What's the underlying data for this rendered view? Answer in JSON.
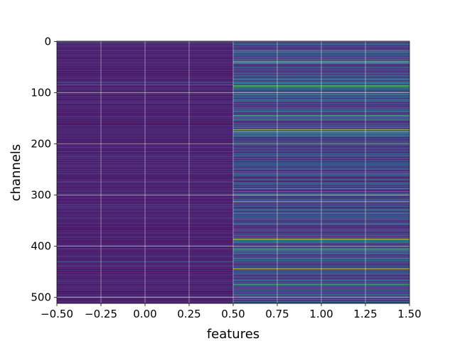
{
  "chart_data": {
    "type": "heatmap",
    "title": "",
    "xlabel": "features",
    "ylabel": "channels",
    "xlim": [
      -0.5,
      1.5
    ],
    "ylim": [
      511.5,
      -0.5
    ],
    "y_inverted": true,
    "grid": true,
    "grid_color": "#ffffff",
    "colormap": "viridis",
    "colormap_stops": [
      "#440154",
      "#482878",
      "#3e4989",
      "#31688e",
      "#26828e",
      "#1f9e89",
      "#35b779",
      "#6ece58",
      "#b5de2b",
      "#fde725"
    ],
    "columns": [
      0,
      1
    ],
    "rows": 512,
    "x_ticks": [
      -0.5,
      -0.25,
      0.0,
      0.25,
      0.5,
      0.75,
      1.0,
      1.25,
      1.5
    ],
    "x_tick_labels": [
      "−0.50",
      "−0.25",
      "0.00",
      "0.25",
      "0.50",
      "0.75",
      "1.00",
      "1.25",
      "1.50"
    ],
    "y_ticks": [
      0,
      100,
      200,
      300,
      400,
      500
    ],
    "y_tick_labels": [
      "0",
      "100",
      "200",
      "300",
      "400",
      "500"
    ],
    "column_profiles": {
      "0": {
        "base_level": 0.05,
        "jitter": 0.09,
        "highlights": [
          {
            "channel": 2,
            "level": 0.3
          },
          {
            "channel": 80,
            "level": 0.35
          },
          {
            "channel": 85,
            "level": 0.3
          },
          {
            "channel": 274,
            "level": 0.35
          },
          {
            "channel": 399,
            "level": 0.3
          },
          {
            "channel": 430,
            "level": 0.3
          },
          {
            "channel": 499,
            "level": 0.4
          }
        ]
      },
      "1": {
        "base_level": 0.1,
        "jitter": 0.35,
        "highlights": [
          {
            "channel": 18,
            "level": 0.6
          },
          {
            "channel": 40,
            "level": 0.95
          },
          {
            "channel": 86,
            "level": 0.75
          },
          {
            "channel": 89,
            "level": 0.7
          },
          {
            "channel": 145,
            "level": 0.7
          },
          {
            "channel": 172,
            "level": 0.9
          },
          {
            "channel": 176,
            "level": 0.85
          },
          {
            "channel": 270,
            "level": 0.6
          },
          {
            "channel": 287,
            "level": 0.55
          },
          {
            "channel": 313,
            "level": 0.75
          },
          {
            "channel": 386,
            "level": 0.95
          },
          {
            "channel": 405,
            "level": 0.7
          },
          {
            "channel": 410,
            "level": 0.6
          },
          {
            "channel": 444,
            "level": 0.95
          },
          {
            "channel": 475,
            "level": 0.7
          }
        ]
      }
    }
  }
}
